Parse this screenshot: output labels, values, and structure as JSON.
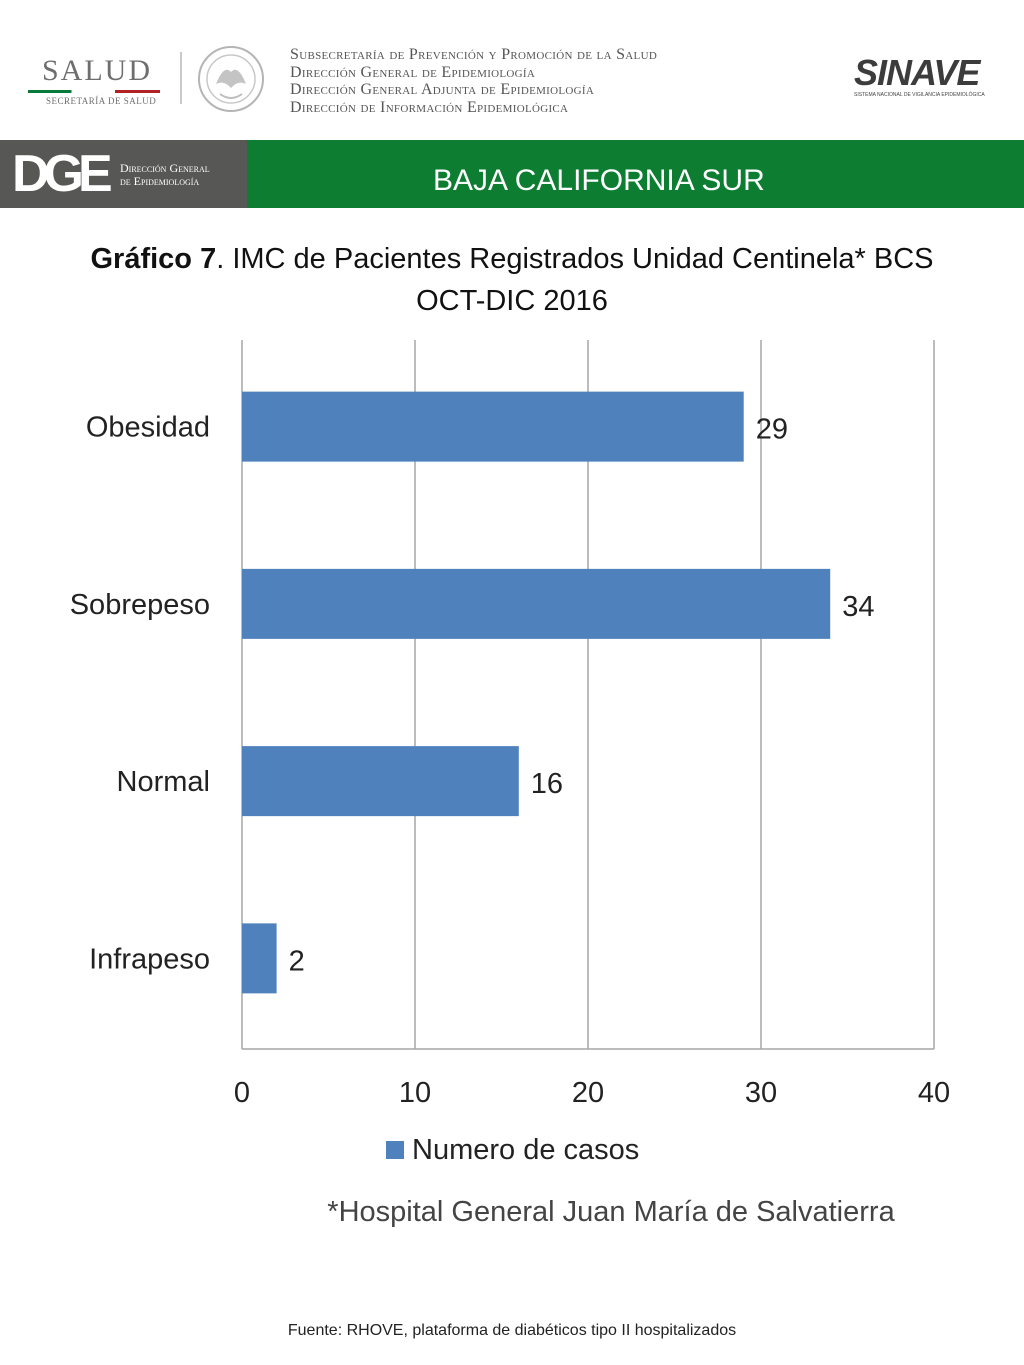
{
  "header": {
    "salud_word": "SALUD",
    "salud_sub": "SECRETARÍA DE SALUD",
    "institution_lines": [
      "Subsecretaría de Prevención y Promoción de la Salud",
      "Dirección General de Epidemiología",
      "Dirección General Adjunta de Epidemiología",
      "Dirección de Información Epidemiológica"
    ],
    "sinave_word": "SINAVE",
    "sinave_sub": "SISTEMA NACIONAL DE VIGILANCIA EPIDEMIOLÓGICA"
  },
  "band": {
    "dge_logo": "DGE",
    "dge_line1": "Dirección General",
    "dge_line2": "de Epidemiología",
    "state": "BAJA CALIFORNIA SUR"
  },
  "colors": {
    "bar": "#4f81bd",
    "band_green": "#0d7d31",
    "band_gray": "#575756",
    "grid": "#a6a6a6"
  },
  "chart_data": {
    "type": "bar",
    "orientation": "horizontal",
    "title_bold": "Gráfico 7",
    "title_rest": ". IMC de Pacientes Registrados Unidad Centinela* BCS",
    "title_line2": "OCT-DIC 2016",
    "categories": [
      "Obesidad",
      "Sobrepeso",
      "Normal",
      "Infrapeso"
    ],
    "series": [
      {
        "name": "Numero de casos",
        "values": [
          29,
          34,
          16,
          2
        ]
      }
    ],
    "xlim": [
      0,
      40
    ],
    "xticks": [
      0,
      10,
      20,
      30,
      40
    ],
    "grid": true,
    "legend_position": "bottom",
    "data_labels": true
  },
  "footnote": "*Hospital General Juan María de Salvatierra",
  "source": "Fuente: RHOVE, plataforma de diabéticos tipo II hospitalizados"
}
